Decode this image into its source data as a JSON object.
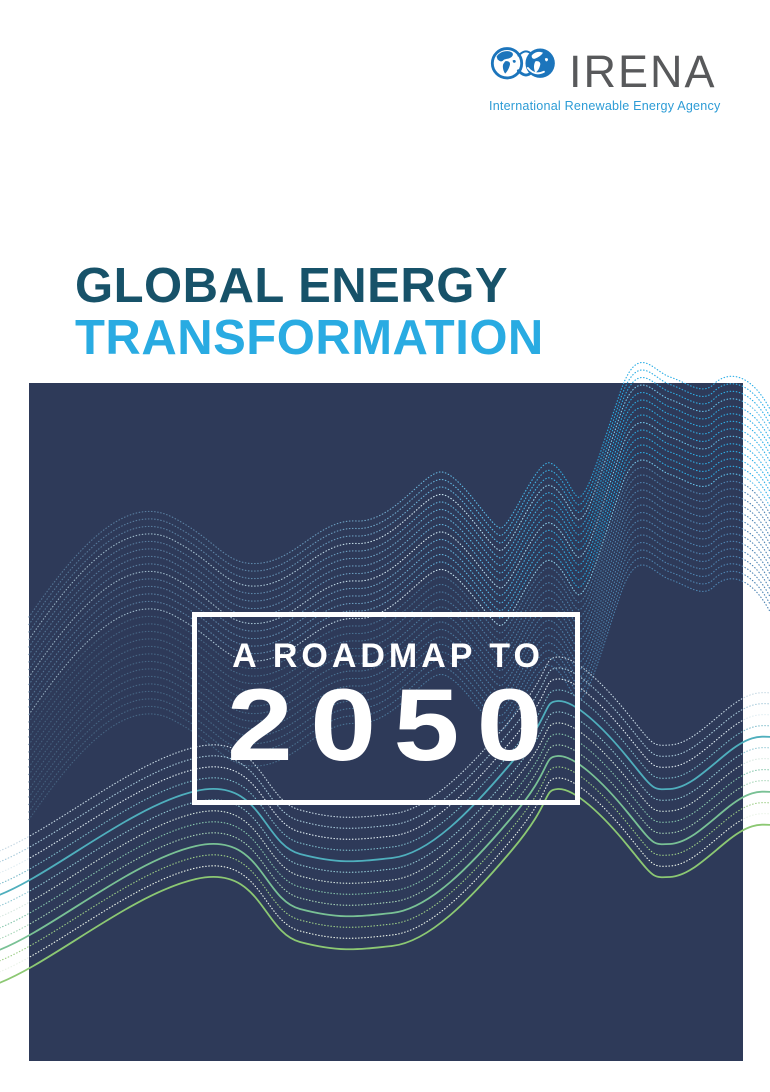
{
  "logo": {
    "wordmark": "IRENA",
    "tagline": "International Renewable Energy Agency",
    "icon": "irena-double-globe-infinity-icon",
    "colors": {
      "globe_blue": "#1C75BC",
      "wordmark_gray": "#58595B",
      "tagline_blue": "#2D9CD6"
    }
  },
  "title": {
    "line1": "GLOBAL ENERGY",
    "line2": "TRANSFORMATION",
    "line1_color": "#175269",
    "line2_color": "#29ABE2"
  },
  "cover_panel": {
    "background_color": "#2E3A59",
    "wave_style": "dotted contour waves",
    "wave_colors": {
      "muted_blue": "#4F6E8E",
      "bright_cyan": "#29ABE2",
      "silver": "#C6D8E3",
      "teal": "#4FAFBD",
      "green": "#8CC873"
    },
    "badge": {
      "line1": "A ROADMAP TO",
      "line2": "2050",
      "text_color": "#FFFFFF",
      "border_color": "#FFFFFF"
    }
  }
}
